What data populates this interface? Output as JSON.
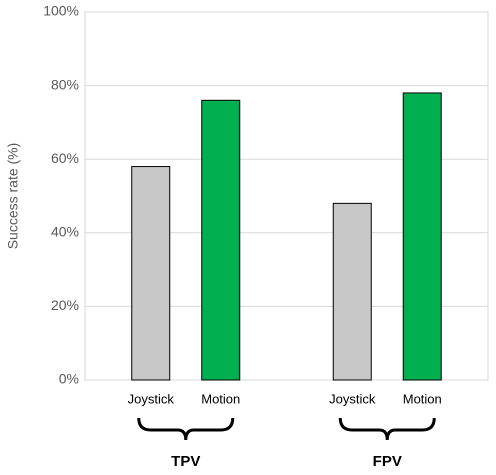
{
  "chart_data": {
    "type": "bar",
    "y_label": "Success rate (%)",
    "categories": [
      "TPV",
      "FPV"
    ],
    "series": [
      {
        "name": "Joystick",
        "color": "#c8c8c8",
        "values": [
          58,
          48
        ]
      },
      {
        "name": "Motion",
        "color": "#00b050",
        "values": [
          76,
          78
        ]
      }
    ],
    "ylim": [
      0,
      100
    ],
    "yticks": [
      {
        "value": 0,
        "label": "0%"
      },
      {
        "value": 20,
        "label": "20%"
      },
      {
        "value": 40,
        "label": "40%"
      },
      {
        "value": 60,
        "label": "60%"
      },
      {
        "value": 80,
        "label": "80%"
      },
      {
        "value": 100,
        "label": "100%"
      }
    ],
    "grid": true
  }
}
